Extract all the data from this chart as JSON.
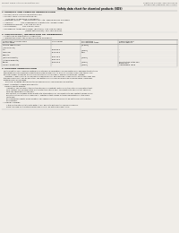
{
  "bg_color": "#f0ede8",
  "header_left": "Product Name: Lithium Ion Battery Cell",
  "header_right_line1": "Substance number: 99R-049-00010",
  "header_right_line2": "Established / Revision: Dec.7.2010",
  "main_title": "Safety data sheet for chemical products (SDS)",
  "section1_title": "1. PRODUCT AND COMPANY IDENTIFICATION",
  "section1_lines": [
    "  • Product name: Lithium Ion Battery Cell",
    "  • Product code: Cylindrical-type cell",
    "      (JV18650U, JV18650U2, JVR18650A)",
    "  • Company name:      Sanyo Electric Co., Ltd., Mobile Energy Company",
    "  • Address:              2001 Kamiosaka, Sumoto-City, Hyogo, Japan",
    "  • Telephone number:  +81-799-26-4111",
    "  • Fax number:          +81-799-26-4120",
    "  • Emergency telephone number (daytime): +81-799-26-3962",
    "                                          (Night and holiday): +81-799-26-4101"
  ],
  "section2_title": "2. COMPOSITION / INFORMATION ON INGREDIENTS",
  "section2_sub": "  • Substance or preparation: Preparation",
  "section2_sub2": "  • Information about the chemical nature of product:",
  "table_headers": [
    "Component /chemical name",
    "CAS number",
    "Concentration /\nConcentration range",
    "Classification and\nhazard labeling"
  ],
  "table_header2_row": [
    "Several name",
    "",
    "",
    ""
  ],
  "table_rows": [
    [
      "Lithium cobalt oxide",
      "-",
      "[30-60%]",
      "-"
    ],
    [
      "(LiMn-Co-Ni-O2)",
      "",
      "",
      ""
    ],
    [
      "Iron",
      "7439-89-6",
      "[5-20%]",
      "-"
    ],
    [
      "Aluminum",
      "7429-90-5",
      "2.6%",
      "-"
    ],
    [
      "Graphite",
      "",
      "",
      ""
    ],
    [
      "(Natural graphite)",
      "7782-42-5",
      "[0-20%]",
      "-"
    ],
    [
      "(Artificial graphite)",
      "7440-44-0",
      "",
      ""
    ],
    [
      "Copper",
      "7440-50-8",
      "[5-15%]",
      "Sensitization of the skin\ngroup No.2"
    ],
    [
      "Organic electrolyte",
      "-",
      "[5-20%]",
      "Inflammable liquid"
    ]
  ],
  "section3_title": "3. HAZARDS IDENTIFICATION",
  "section3_lines": [
    "   For this battery cell, chemical materials are stored in a hermetically sealed metal case, designed to withstand",
    "   temperatures and pressures encountered during normal use. As a result, during normal use, there is no",
    "   physical danger of ignition or explosion and there is no danger of hazardous materials leakage.",
    "      However, if exposed to a fire, added mechanical shocks, decomposed, under electric stress they may use.",
    "   the gas release vent can be operated. The battery cell case will be breached or fire-polheme. hazardous",
    "   materials may be released.",
    "      Moreover, if heated strongly by the surrounding fire, some gas may be emitted."
  ],
  "section3_sub1": "  • Most important hazard and effects:",
  "section3_human": "     Human health effects:",
  "section3_human_lines": [
    "        Inhalation: The release of the electrolyte has an anesthetic action and stimulates in respiratory tract.",
    "        Skin contact: The release of the electrolyte stimulates a skin. The electrolyte skin contact causes a",
    "        sore and stimulation on the skin.",
    "        Eye contact: The release of the electrolyte stimulates eyes. The electrolyte eye contact causes a sore",
    "        and stimulation on the eye. Especially, substance that causes a strong inflammation of the eye is",
    "        contained.",
    "        Environmental effects: Since a battery cell remains in the environment, do not throw out it into the",
    "        environment."
  ],
  "section3_specific": "  • Specific hazards:",
  "section3_specific_lines": [
    "        If the electrolyte contacts with water, it will generate detrimental hydrogen fluoride.",
    "        Since the used electrolyte is inflammable liquid, do not bring close to fire."
  ]
}
